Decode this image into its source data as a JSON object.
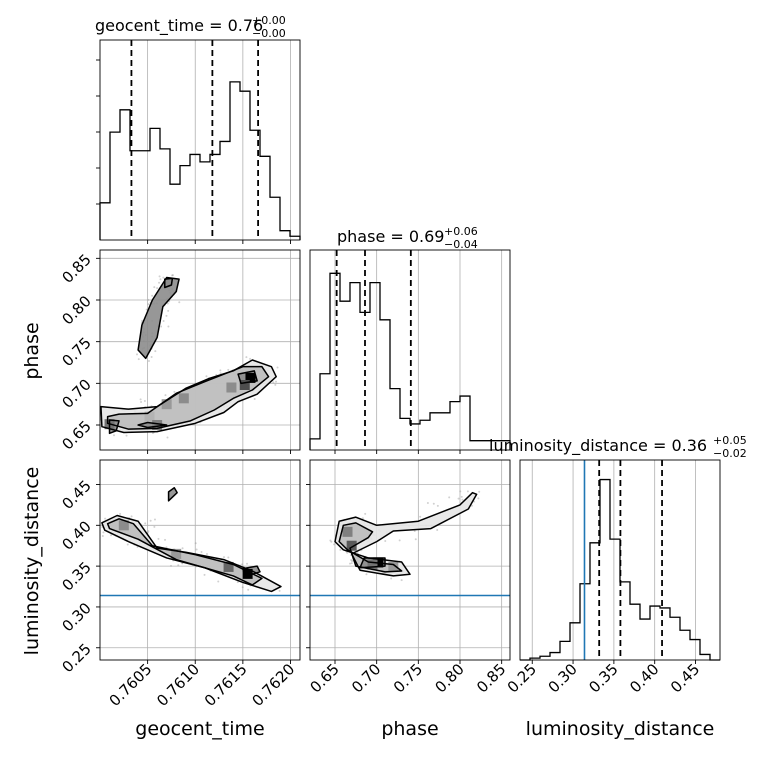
{
  "chart_data": {
    "type": "corner",
    "truth_color": "#1f77b4",
    "truths": {
      "luminosity_distance": 0.314
    },
    "parameters": [
      {
        "name": "geocent_time",
        "title": "geocent_time = 0.76",
        "median": "0.76",
        "sup": "+0.00",
        "sub": "−0.00",
        "range": [
          0.76,
          0.7621
        ],
        "ticks": [
          0.7605,
          0.761,
          0.7615,
          0.762
        ],
        "tick_labels": [
          "0.7605",
          "0.7610",
          "0.7615",
          "0.7620"
        ],
        "quantiles": [
          0.76033,
          0.76118,
          0.76166
        ],
        "hist": {
          "edges": [
            0.76,
            0.760105,
            0.76021,
            0.760315,
            0.76042,
            0.760525,
            0.76063,
            0.760735,
            0.76084,
            0.760945,
            0.76105,
            0.761155,
            0.76126,
            0.761365,
            0.76147,
            0.761575,
            0.76168,
            0.761785,
            0.76189,
            0.761995,
            0.7621
          ],
          "values": [
            0.2,
            0.58,
            0.7,
            0.48,
            0.48,
            0.6,
            0.49,
            0.3,
            0.4,
            0.46,
            0.42,
            0.46,
            0.53,
            0.85,
            0.8,
            0.59,
            0.45,
            0.23,
            0.05,
            0.02
          ]
        }
      },
      {
        "name": "phase",
        "title": "phase = 0.69",
        "median": "0.69",
        "sup": "+0.06",
        "sub": "−0.04",
        "range": [
          0.62,
          0.86
        ],
        "ticks": [
          0.65,
          0.7,
          0.75,
          0.8,
          0.85
        ],
        "tick_labels": [
          "0.65",
          "0.70",
          "0.75",
          "0.80",
          "0.85"
        ],
        "quantiles": [
          0.652,
          0.686,
          0.741
        ],
        "hist": {
          "edges": [
            0.62,
            0.632,
            0.644,
            0.656,
            0.668,
            0.68,
            0.692,
            0.704,
            0.716,
            0.728,
            0.74,
            0.752,
            0.764,
            0.776,
            0.788,
            0.8,
            0.812,
            0.824,
            0.836,
            0.848,
            0.86
          ],
          "values": [
            0.06,
            0.41,
            0.95,
            0.8,
            0.9,
            0.74,
            0.9,
            0.7,
            0.33,
            0.17,
            0.14,
            0.16,
            0.2,
            0.2,
            0.26,
            0.29,
            0.05,
            0.05,
            0.05,
            0.05
          ]
        }
      },
      {
        "name": "luminosity_distance",
        "title": "luminosity_distance = 0.36",
        "median": "0.36",
        "sup": "+0.05",
        "sub": "−0.02",
        "range": [
          0.235,
          0.48
        ],
        "ticks": [
          0.25,
          0.3,
          0.35,
          0.4,
          0.45
        ],
        "tick_labels": [
          "0.25",
          "0.30",
          "0.35",
          "0.40",
          "0.45"
        ],
        "quantiles": [
          0.332,
          0.358,
          0.409
        ],
        "hist": {
          "edges": [
            0.235,
            0.24725,
            0.2595,
            0.27175,
            0.284,
            0.29625,
            0.3085,
            0.32075,
            0.333,
            0.34525,
            0.3575,
            0.36975,
            0.382,
            0.39425,
            0.4065,
            0.41875,
            0.431,
            0.44325,
            0.4555,
            0.46775,
            0.48
          ],
          "values": [
            0.0,
            0.01,
            0.02,
            0.04,
            0.1,
            0.2,
            0.41,
            0.63,
            0.97,
            0.65,
            0.42,
            0.3,
            0.22,
            0.29,
            0.28,
            0.23,
            0.16,
            0.11,
            0.03,
            0.0
          ]
        }
      }
    ],
    "pairs": [
      {
        "x": "geocent_time",
        "y": "phase",
        "contours": [
          [
            [
              0.76002,
              0.648
            ],
            [
              0.76025,
              0.641
            ],
            [
              0.7606,
              0.642
            ],
            [
              0.761,
              0.652
            ],
            [
              0.7613,
              0.665
            ],
            [
              0.76145,
              0.678
            ],
            [
              0.76165,
              0.687
            ],
            [
              0.76185,
              0.708
            ],
            [
              0.7618,
              0.72
            ],
            [
              0.7616,
              0.728
            ],
            [
              0.7614,
              0.715
            ],
            [
              0.76115,
              0.706
            ],
            [
              0.7609,
              0.694
            ],
            [
              0.7606,
              0.672
            ],
            [
              0.7603,
              0.669
            ],
            [
              0.76001,
              0.672
            ]
          ],
          [
            [
              0.76008,
              0.652
            ],
            [
              0.7603,
              0.645
            ],
            [
              0.7606,
              0.646
            ],
            [
              0.76095,
              0.655
            ],
            [
              0.7612,
              0.668
            ],
            [
              0.7614,
              0.682
            ],
            [
              0.7616,
              0.692
            ],
            [
              0.76177,
              0.708
            ],
            [
              0.7617,
              0.72
            ],
            [
              0.7615,
              0.72
            ],
            [
              0.7613,
              0.711
            ],
            [
              0.7611,
              0.702
            ],
            [
              0.7608,
              0.688
            ],
            [
              0.7605,
              0.664
            ],
            [
              0.7602,
              0.663
            ],
            [
              0.76008,
              0.66
            ]
          ],
          [
            [
              0.7601,
              0.64
            ],
            [
              0.76017,
              0.643
            ],
            [
              0.7602,
              0.655
            ],
            [
              0.7601,
              0.656
            ]
          ],
          [
            [
              0.7605,
              0.647
            ],
            [
              0.7607,
              0.65
            ],
            [
              0.7605,
              0.653
            ],
            [
              0.7604,
              0.65
            ]
          ],
          [
            [
              0.76148,
              0.7
            ],
            [
              0.76165,
              0.703
            ],
            [
              0.76162,
              0.715
            ],
            [
              0.76145,
              0.711
            ]
          ],
          [
            [
              0.76048,
              0.73
            ],
            [
              0.7606,
              0.755
            ],
            [
              0.76066,
              0.792
            ],
            [
              0.7608,
              0.81
            ],
            [
              0.76083,
              0.825
            ],
            [
              0.7607,
              0.827
            ],
            [
              0.76055,
              0.8
            ],
            [
              0.76044,
              0.77
            ],
            [
              0.7604,
              0.74
            ]
          ],
          [
            [
              0.76068,
              0.815
            ],
            [
              0.76075,
              0.818
            ],
            [
              0.76076,
              0.826
            ],
            [
              0.76068,
              0.825
            ]
          ]
        ],
        "density_cells": [
          [
            0.76158,
            0.7065,
            0.0
          ],
          [
            0.76152,
            0.698,
            0.3
          ],
          [
            0.76138,
            0.695,
            0.55
          ],
          [
            0.76088,
            0.682,
            0.55
          ],
          [
            0.7607,
            0.675,
            0.6
          ],
          [
            0.76052,
            0.66,
            0.7
          ],
          [
            0.7601,
            0.651,
            0.45
          ],
          [
            0.7606,
            0.65,
            0.5
          ]
        ]
      },
      {
        "x": "geocent_time",
        "y": "luminosity_distance",
        "contours": [
          [
            [
              0.76002,
              0.403
            ],
            [
              0.76018,
              0.412
            ],
            [
              0.7604,
              0.405
            ],
            [
              0.7606,
              0.372
            ],
            [
              0.7609,
              0.367
            ],
            [
              0.7613,
              0.358
            ],
            [
              0.7616,
              0.344
            ],
            [
              0.7619,
              0.325
            ],
            [
              0.7618,
              0.319
            ],
            [
              0.7615,
              0.33
            ],
            [
              0.7611,
              0.348
            ],
            [
              0.7607,
              0.36
            ],
            [
              0.7603,
              0.38
            ],
            [
              0.76005,
              0.394
            ]
          ],
          [
            [
              0.76008,
              0.402
            ],
            [
              0.7602,
              0.408
            ],
            [
              0.76035,
              0.402
            ],
            [
              0.76055,
              0.375
            ],
            [
              0.761,
              0.364
            ],
            [
              0.7614,
              0.352
            ],
            [
              0.7617,
              0.335
            ],
            [
              0.7616,
              0.327
            ],
            [
              0.7614,
              0.338
            ],
            [
              0.7608,
              0.358
            ],
            [
              0.7604,
              0.383
            ],
            [
              0.7601,
              0.396
            ]
          ],
          [
            [
              0.76152,
              0.337
            ],
            [
              0.76168,
              0.343
            ],
            [
              0.76165,
              0.35
            ],
            [
              0.7615,
              0.347
            ]
          ],
          [
            [
              0.76072,
              0.43
            ],
            [
              0.76081,
              0.44
            ],
            [
              0.76078,
              0.446
            ],
            [
              0.76072,
              0.441
            ]
          ]
        ],
        "density_cells": [
          [
            0.76155,
            0.3405,
            0.0
          ],
          [
            0.76135,
            0.349,
            0.4
          ],
          [
            0.7608,
            0.365,
            0.6
          ],
          [
            0.76025,
            0.4,
            0.55
          ]
        ]
      },
      {
        "x": "phase",
        "y": "luminosity_distance",
        "contours": [
          [
            [
              0.65,
              0.38
            ],
            [
              0.655,
              0.405
            ],
            [
              0.675,
              0.41
            ],
            [
              0.7,
              0.4
            ],
            [
              0.75,
              0.405
            ],
            [
              0.8,
              0.425
            ],
            [
              0.815,
              0.44
            ],
            [
              0.82,
              0.438
            ],
            [
              0.81,
              0.42
            ],
            [
              0.765,
              0.396
            ],
            [
              0.72,
              0.393
            ],
            [
              0.7,
              0.38
            ],
            [
              0.67,
              0.365
            ],
            [
              0.68,
              0.345
            ],
            [
              0.72,
              0.338
            ],
            [
              0.74,
              0.34
            ],
            [
              0.73,
              0.355
            ],
            [
              0.69,
              0.36
            ],
            [
              0.66,
              0.37
            ]
          ],
          [
            [
              0.655,
              0.38
            ],
            [
              0.66,
              0.4
            ],
            [
              0.675,
              0.403
            ],
            [
              0.695,
              0.392
            ],
            [
              0.69,
              0.385
            ],
            [
              0.668,
              0.372
            ],
            [
              0.675,
              0.35
            ],
            [
              0.71,
              0.343
            ],
            [
              0.73,
              0.344
            ],
            [
              0.72,
              0.352
            ],
            [
              0.69,
              0.355
            ],
            [
              0.665,
              0.37
            ]
          ],
          [
            [
              0.68,
              0.348
            ],
            [
              0.71,
              0.35
            ],
            [
              0.71,
              0.36
            ],
            [
              0.685,
              0.36
            ]
          ]
        ],
        "density_cells": [
          [
            0.702,
            0.3545,
            0.0
          ],
          [
            0.67,
            0.375,
            0.35
          ],
          [
            0.695,
            0.352,
            0.45
          ],
          [
            0.72,
            0.349,
            0.6
          ],
          [
            0.665,
            0.392,
            0.5
          ]
        ]
      }
    ]
  }
}
